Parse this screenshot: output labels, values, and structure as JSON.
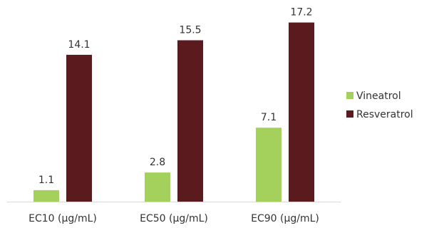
{
  "chart_data": {
    "type": "bar",
    "categories": [
      "EC10 (µg/mL)",
      "EC50 (µg/mL)",
      "EC90 (µg/mL)"
    ],
    "series": [
      {
        "name": "Vineatrol",
        "values": [
          1.1,
          2.8,
          7.1
        ],
        "color": "#a4d15b"
      },
      {
        "name": "Resveratrol",
        "values": [
          14.1,
          15.5,
          17.2
        ],
        "color": "#5a1a1e"
      }
    ],
    "data_labels": true,
    "ylim": [
      0,
      18.2
    ],
    "grid": false,
    "y_axis_visible": false,
    "legend_position": "right",
    "axis_color": "#d9d9d9"
  }
}
